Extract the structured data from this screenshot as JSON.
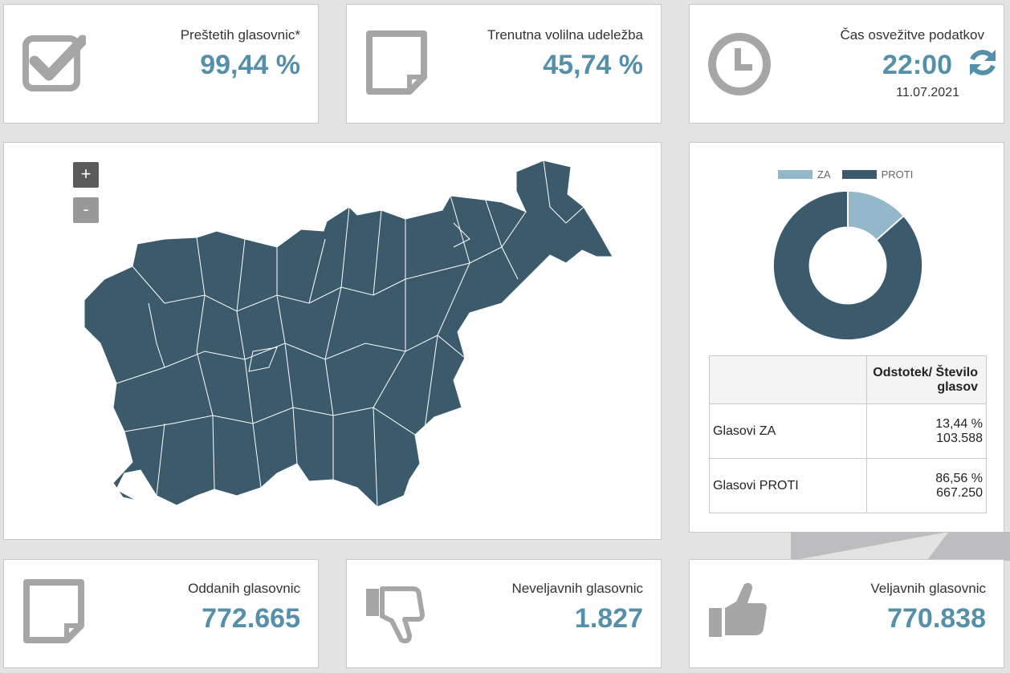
{
  "cards": {
    "counted": {
      "label": "Preštetih glasovnic*",
      "value": "99,44 %",
      "icon": "checkbox-check-icon"
    },
    "turnout": {
      "label": "Trenutna volilna udeležba",
      "value": "45,74 %",
      "icon": "document-icon"
    },
    "refresh": {
      "label": "Čas osvežitve podatkov",
      "time": "22:00",
      "date": "11.07.2021",
      "icon": "clock-icon"
    },
    "cast": {
      "label": "Oddanih glasovnic",
      "value": "772.665",
      "icon": "document-icon"
    },
    "invalid": {
      "label": "Neveljavnih glasovnic",
      "value": "1.827",
      "icon": "thumbs-down-icon"
    },
    "valid": {
      "label": "Veljavnih glasovnic",
      "value": "770.838",
      "icon": "thumbs-up-icon"
    }
  },
  "map": {
    "zoom_in": "+",
    "zoom_out": "-",
    "fill": "#3b5b6d"
  },
  "table": {
    "header": [
      "",
      "Odstotek/ Število glasov"
    ],
    "rows": [
      {
        "label": "Glasovi ZA",
        "pct": "13,44 %",
        "count": "103.588"
      },
      {
        "label": "Glasovi PROTI",
        "pct": "86,56 %",
        "count": "667.250"
      }
    ]
  },
  "colors": {
    "accent": "#5590aa",
    "za": "#93b8ca",
    "proti": "#3b5b6d"
  },
  "chart_data": {
    "type": "pie",
    "donut": true,
    "legend": "top",
    "categories": [
      "ZA",
      "PROTI"
    ],
    "values": [
      13.44,
      86.56
    ],
    "colors": [
      "#93b8ca",
      "#3b5b6d"
    ]
  }
}
